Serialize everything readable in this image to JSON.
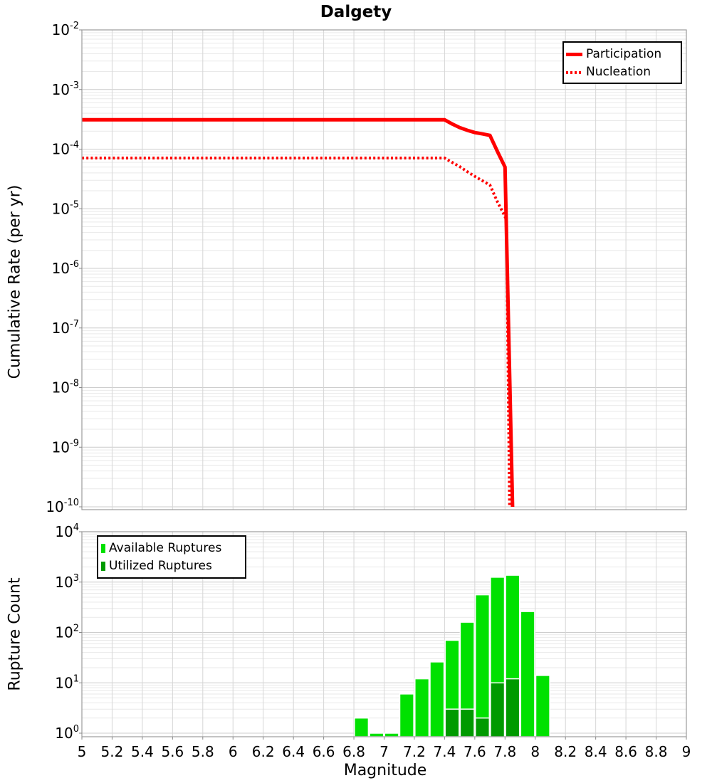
{
  "title": "Dalgety",
  "colors": {
    "series_red": "#ff0000",
    "available_green": "#00e100",
    "utilized_green": "#009a00",
    "grid_major": "#cccccc",
    "grid_minor": "#e9e9e9",
    "grid_vertical": "#d6d6d6",
    "plot_border": "#9b9b9b",
    "tick": "#888888",
    "text": "#000000",
    "legend_border": "#000000"
  },
  "chart_data": [
    {
      "type": "line",
      "title": "Dalgety",
      "xlabel": "Magnitude",
      "ylabel": "Cumulative Rate (per yr)",
      "xlim": [
        5,
        9
      ],
      "ylim": [
        1e-10,
        0.01
      ],
      "y_ticks_exp": [
        -2,
        -3,
        -4,
        -5,
        -6,
        -7,
        -8,
        -9,
        -10
      ],
      "grid": true,
      "legend_position": "top-right",
      "legend": [
        {
          "label": "Participation",
          "style": "solid-line"
        },
        {
          "label": "Nucleation",
          "style": "dotted-line"
        }
      ],
      "series": [
        {
          "name": "Participation",
          "line": "solid",
          "width": 5,
          "points": [
            [
              5.0,
              0.00031
            ],
            [
              7.4,
              0.00031
            ],
            [
              7.45,
              0.000265
            ],
            [
              7.5,
              0.00023
            ],
            [
              7.55,
              0.000207
            ],
            [
              7.6,
              0.00019
            ],
            [
              7.65,
              0.00018
            ],
            [
              7.7,
              0.00017
            ],
            [
              7.75,
              9.1e-05
            ],
            [
              7.8,
              5e-05
            ],
            [
              7.85,
              1e-10
            ]
          ]
        },
        {
          "name": "Nucleation",
          "line": "dotted",
          "width": 4,
          "points": [
            [
              5.0,
              7.1e-05
            ],
            [
              7.4,
              7.1e-05
            ],
            [
              7.45,
              6e-05
            ],
            [
              7.5,
              5.1e-05
            ],
            [
              7.55,
              4.2e-05
            ],
            [
              7.6,
              3.5e-05
            ],
            [
              7.65,
              2.95e-05
            ],
            [
              7.7,
              2.5e-05
            ],
            [
              7.75,
              1.3e-05
            ],
            [
              7.79,
              8.3e-06
            ],
            [
              7.81,
              6.5e-06
            ],
            [
              7.83,
              1e-10
            ]
          ]
        }
      ]
    },
    {
      "type": "bar",
      "xlabel": "Magnitude",
      "ylabel": "Rupture Count",
      "xlim": [
        5,
        9
      ],
      "ylim": [
        1,
        10000
      ],
      "y_ticks_exp": [
        4,
        3,
        2,
        1,
        0
      ],
      "x_ticks": [
        "5",
        "5.2",
        "5.4",
        "5.6",
        "5.8",
        "6",
        "6.2",
        "6.4",
        "6.6",
        "6.8",
        "7",
        "7.2",
        "7.4",
        "7.6",
        "7.8",
        "8",
        "8.2",
        "8.4",
        "8.6",
        "8.8",
        "9"
      ],
      "bin_width": 0.1,
      "grid": true,
      "legend_position": "top-left",
      "legend": [
        {
          "label": "Available Ruptures",
          "swatch": "#00e100"
        },
        {
          "label": "Utilized Ruptures",
          "swatch": "#009a00"
        }
      ],
      "series": [
        {
          "name": "Available Ruptures",
          "color": "#00e100",
          "bins": [
            [
              6.85,
              2
            ],
            [
              6.95,
              1
            ],
            [
              7.05,
              1
            ],
            [
              7.15,
              6
            ],
            [
              7.25,
              12
            ],
            [
              7.35,
              26
            ],
            [
              7.45,
              70
            ],
            [
              7.55,
              160
            ],
            [
              7.65,
              560
            ],
            [
              7.75,
              1250
            ],
            [
              7.85,
              1370
            ],
            [
              7.95,
              260
            ],
            [
              8.05,
              14
            ]
          ]
        },
        {
          "name": "Utilized Ruptures",
          "color": "#009a00",
          "bins": [
            [
              7.45,
              3
            ],
            [
              7.55,
              3
            ],
            [
              7.65,
              2
            ],
            [
              7.75,
              10
            ],
            [
              7.85,
              12
            ]
          ]
        }
      ]
    }
  ]
}
